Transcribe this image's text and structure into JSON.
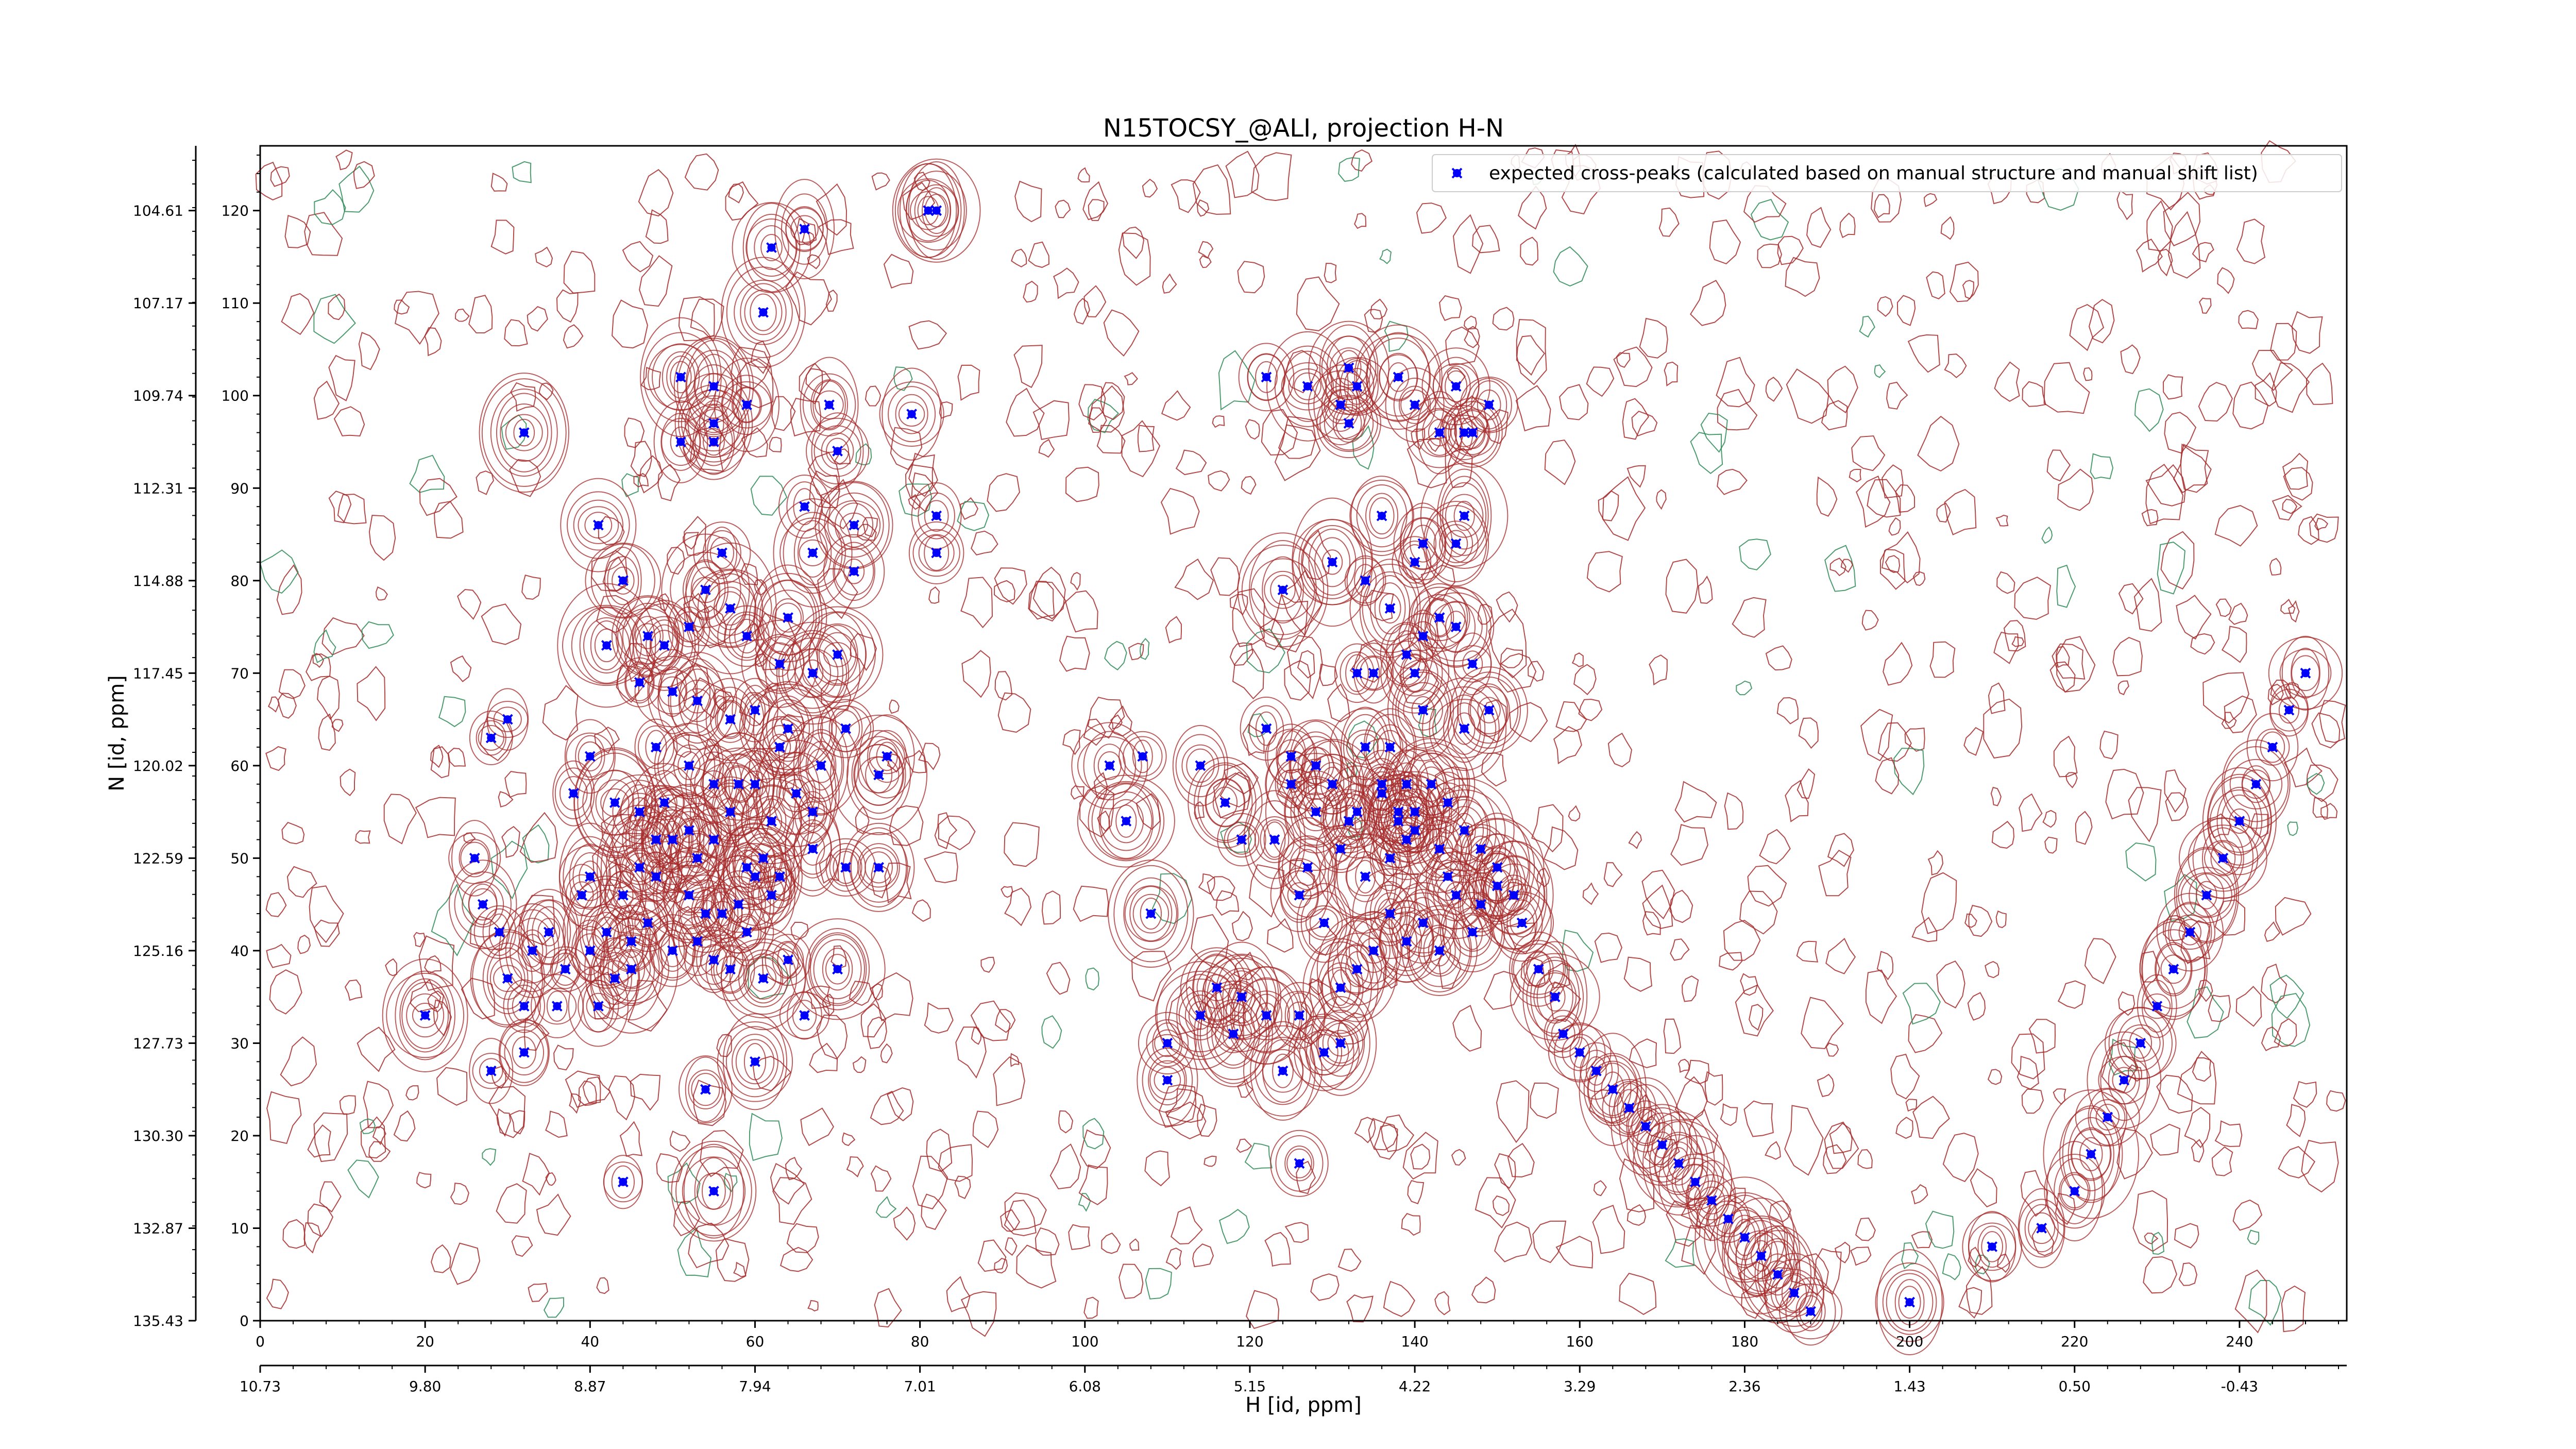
{
  "chart_data": {
    "type": "scatter",
    "title": "N15TOCSY_@ALI, projection H-N",
    "xlabel": "H [id, ppm]",
    "ylabel": "N [id, ppm]",
    "xlim": [
      0,
      253
    ],
    "ylim": [
      0,
      127
    ],
    "x_ticks": [
      0,
      20,
      40,
      60,
      80,
      100,
      120,
      140,
      160,
      180,
      200,
      220,
      240
    ],
    "y_ticks": [
      0,
      10,
      20,
      30,
      40,
      50,
      60,
      70,
      80,
      90,
      100,
      110,
      120
    ],
    "secondary_x_ticks": [
      "10.73",
      "9.80",
      "8.87",
      "7.94",
      "7.01",
      "6.08",
      "5.15",
      "4.22",
      "3.29",
      "2.36",
      "1.43",
      "0.50",
      "-0.43"
    ],
    "secondary_y_ticks": [
      "135.43",
      "132.87",
      "130.30",
      "127.73",
      "125.16",
      "122.59",
      "120.02",
      "117.45",
      "114.88",
      "112.31",
      "109.74",
      "107.17",
      "104.61"
    ],
    "legend": {
      "location": "top-right",
      "entries": [
        "expected cross-peaks (calculated based on manual structure and manual shift list)"
      ]
    },
    "grid": false,
    "colors": {
      "points": "#0000ff",
      "contour_positive": "#a52a2a",
      "contour_negative": "#2e8b57"
    },
    "series": [
      {
        "name": "expected cross-peaks (calculated based on manual structure and manual shift list)",
        "points": [
          [
            82,
            120
          ],
          [
            66,
            118
          ],
          [
            62,
            116
          ],
          [
            61,
            109
          ],
          [
            51,
            102
          ],
          [
            55,
            101
          ],
          [
            55,
            97
          ],
          [
            55,
            95
          ],
          [
            51,
            95
          ],
          [
            32,
            96
          ],
          [
            59,
            99
          ],
          [
            69,
            99
          ],
          [
            79,
            98
          ],
          [
            70,
            94
          ],
          [
            66,
            88
          ],
          [
            67,
            83
          ],
          [
            72,
            86
          ],
          [
            72,
            81
          ],
          [
            82,
            87
          ],
          [
            82,
            83
          ],
          [
            41,
            86
          ],
          [
            44,
            80
          ],
          [
            56,
            83
          ],
          [
            57,
            77
          ],
          [
            59,
            74
          ],
          [
            64,
            76
          ],
          [
            63,
            71
          ],
          [
            67,
            70
          ],
          [
            70,
            72
          ],
          [
            54,
            79
          ],
          [
            52,
            75
          ],
          [
            49,
            73
          ],
          [
            47,
            74
          ],
          [
            42,
            73
          ],
          [
            50,
            68
          ],
          [
            46,
            69
          ],
          [
            53,
            67
          ],
          [
            57,
            65
          ],
          [
            60,
            66
          ],
          [
            63,
            62
          ],
          [
            64,
            64
          ],
          [
            71,
            64
          ],
          [
            28,
            63
          ],
          [
            30,
            65
          ],
          [
            40,
            61
          ],
          [
            48,
            62
          ],
          [
            52,
            60
          ],
          [
            55,
            58
          ],
          [
            58,
            58
          ],
          [
            60,
            58
          ],
          [
            62,
            54
          ],
          [
            65,
            57
          ],
          [
            67,
            55
          ],
          [
            68,
            60
          ],
          [
            75,
            59
          ],
          [
            76,
            61
          ],
          [
            38,
            57
          ],
          [
            43,
            56
          ],
          [
            46,
            55
          ],
          [
            48,
            52
          ],
          [
            49,
            56
          ],
          [
            50,
            52
          ],
          [
            52,
            53
          ],
          [
            53,
            50
          ],
          [
            55,
            52
          ],
          [
            57,
            55
          ],
          [
            59,
            49
          ],
          [
            61,
            50
          ],
          [
            63,
            48
          ],
          [
            67,
            51
          ],
          [
            71,
            49
          ],
          [
            75,
            49
          ],
          [
            40,
            48
          ],
          [
            44,
            46
          ],
          [
            46,
            49
          ],
          [
            48,
            48
          ],
          [
            52,
            46
          ],
          [
            54,
            44
          ],
          [
            56,
            44
          ],
          [
            58,
            45
          ],
          [
            60,
            48
          ],
          [
            39,
            46
          ],
          [
            42,
            42
          ],
          [
            45,
            41
          ],
          [
            47,
            43
          ],
          [
            50,
            40
          ],
          [
            53,
            41
          ],
          [
            55,
            39
          ],
          [
            57,
            38
          ],
          [
            59,
            42
          ],
          [
            61,
            37
          ],
          [
            64,
            39
          ],
          [
            27,
            45
          ],
          [
            29,
            42
          ],
          [
            33,
            40
          ],
          [
            37,
            38
          ],
          [
            40,
            40
          ],
          [
            43,
            37
          ],
          [
            45,
            38
          ],
          [
            30,
            37
          ],
          [
            36,
            34
          ],
          [
            41,
            34
          ],
          [
            28,
            27
          ],
          [
            20,
            33
          ],
          [
            32,
            29
          ],
          [
            32,
            34
          ],
          [
            60,
            28
          ],
          [
            62,
            46
          ],
          [
            66,
            33
          ],
          [
            55,
            14
          ],
          [
            44,
            15
          ],
          [
            54,
            25
          ],
          [
            70,
            38
          ],
          [
            26,
            50
          ],
          [
            35,
            42
          ],
          [
            81,
            120
          ],
          [
            122,
            102
          ],
          [
            127,
            101
          ],
          [
            131,
            99
          ],
          [
            133,
            101
          ],
          [
            132,
            103
          ],
          [
            138,
            102
          ],
          [
            140,
            99
          ],
          [
            132,
            97
          ],
          [
            145,
            101
          ],
          [
            146,
            96
          ],
          [
            149,
            99
          ],
          [
            147,
            96
          ],
          [
            143,
            96
          ],
          [
            136,
            87
          ],
          [
            141,
            84
          ],
          [
            145,
            84
          ],
          [
            146,
            87
          ],
          [
            140,
            82
          ],
          [
            134,
            80
          ],
          [
            130,
            82
          ],
          [
            124,
            79
          ],
          [
            137,
            77
          ],
          [
            141,
            74
          ],
          [
            143,
            76
          ],
          [
            145,
            75
          ],
          [
            139,
            72
          ],
          [
            135,
            70
          ],
          [
            133,
            70
          ],
          [
            140,
            70
          ],
          [
            147,
            71
          ],
          [
            149,
            66
          ],
          [
            146,
            64
          ],
          [
            141,
            66
          ],
          [
            137,
            62
          ],
          [
            139,
            58
          ],
          [
            140,
            55
          ],
          [
            138,
            54
          ],
          [
            136,
            57
          ],
          [
            133,
            55
          ],
          [
            131,
            51
          ],
          [
            128,
            55
          ],
          [
            125,
            58
          ],
          [
            123,
            52
          ],
          [
            126,
            46
          ],
          [
            129,
            43
          ],
          [
            127,
            49
          ],
          [
            134,
            48
          ],
          [
            137,
            50
          ],
          [
            139,
            52
          ],
          [
            143,
            51
          ],
          [
            144,
            48
          ],
          [
            145,
            46
          ],
          [
            148,
            45
          ],
          [
            150,
            47
          ],
          [
            147,
            42
          ],
          [
            143,
            40
          ],
          [
            141,
            43
          ],
          [
            139,
            41
          ],
          [
            137,
            44
          ],
          [
            135,
            40
          ],
          [
            133,
            38
          ],
          [
            131,
            36
          ],
          [
            131,
            30
          ],
          [
            129,
            29
          ],
          [
            126,
            33
          ],
          [
            122,
            33
          ],
          [
            119,
            35
          ],
          [
            118,
            31
          ],
          [
            124,
            27
          ],
          [
            126,
            17
          ],
          [
            116,
            36
          ],
          [
            114,
            33
          ],
          [
            110,
            30
          ],
          [
            110,
            26
          ],
          [
            108,
            44
          ],
          [
            105,
            54
          ],
          [
            103,
            60
          ],
          [
            107,
            61
          ],
          [
            114,
            60
          ],
          [
            117,
            56
          ],
          [
            119,
            52
          ],
          [
            122,
            64
          ],
          [
            125,
            61
          ],
          [
            128,
            60
          ],
          [
            130,
            58
          ],
          [
            132,
            54
          ],
          [
            134,
            62
          ],
          [
            136,
            58
          ],
          [
            138,
            55
          ],
          [
            140,
            53
          ],
          [
            142,
            58
          ],
          [
            144,
            56
          ],
          [
            146,
            53
          ],
          [
            148,
            51
          ],
          [
            150,
            49
          ],
          [
            152,
            46
          ],
          [
            153,
            43
          ],
          [
            155,
            38
          ],
          [
            157,
            35
          ],
          [
            158,
            31
          ],
          [
            160,
            29
          ],
          [
            162,
            27
          ],
          [
            164,
            25
          ],
          [
            166,
            23
          ],
          [
            168,
            21
          ],
          [
            170,
            19
          ],
          [
            172,
            17
          ],
          [
            174,
            15
          ],
          [
            176,
            13
          ],
          [
            178,
            11
          ],
          [
            180,
            9
          ],
          [
            182,
            7
          ],
          [
            184,
            5
          ],
          [
            186,
            3
          ],
          [
            188,
            1
          ],
          [
            200,
            2
          ],
          [
            210,
            8
          ],
          [
            216,
            10
          ],
          [
            220,
            14
          ],
          [
            222,
            18
          ],
          [
            224,
            22
          ],
          [
            226,
            26
          ],
          [
            228,
            30
          ],
          [
            230,
            34
          ],
          [
            232,
            38
          ],
          [
            234,
            42
          ],
          [
            236,
            46
          ],
          [
            238,
            50
          ],
          [
            240,
            54
          ],
          [
            242,
            58
          ],
          [
            244,
            62
          ],
          [
            246,
            66
          ],
          [
            248,
            70
          ]
        ]
      }
    ]
  }
}
